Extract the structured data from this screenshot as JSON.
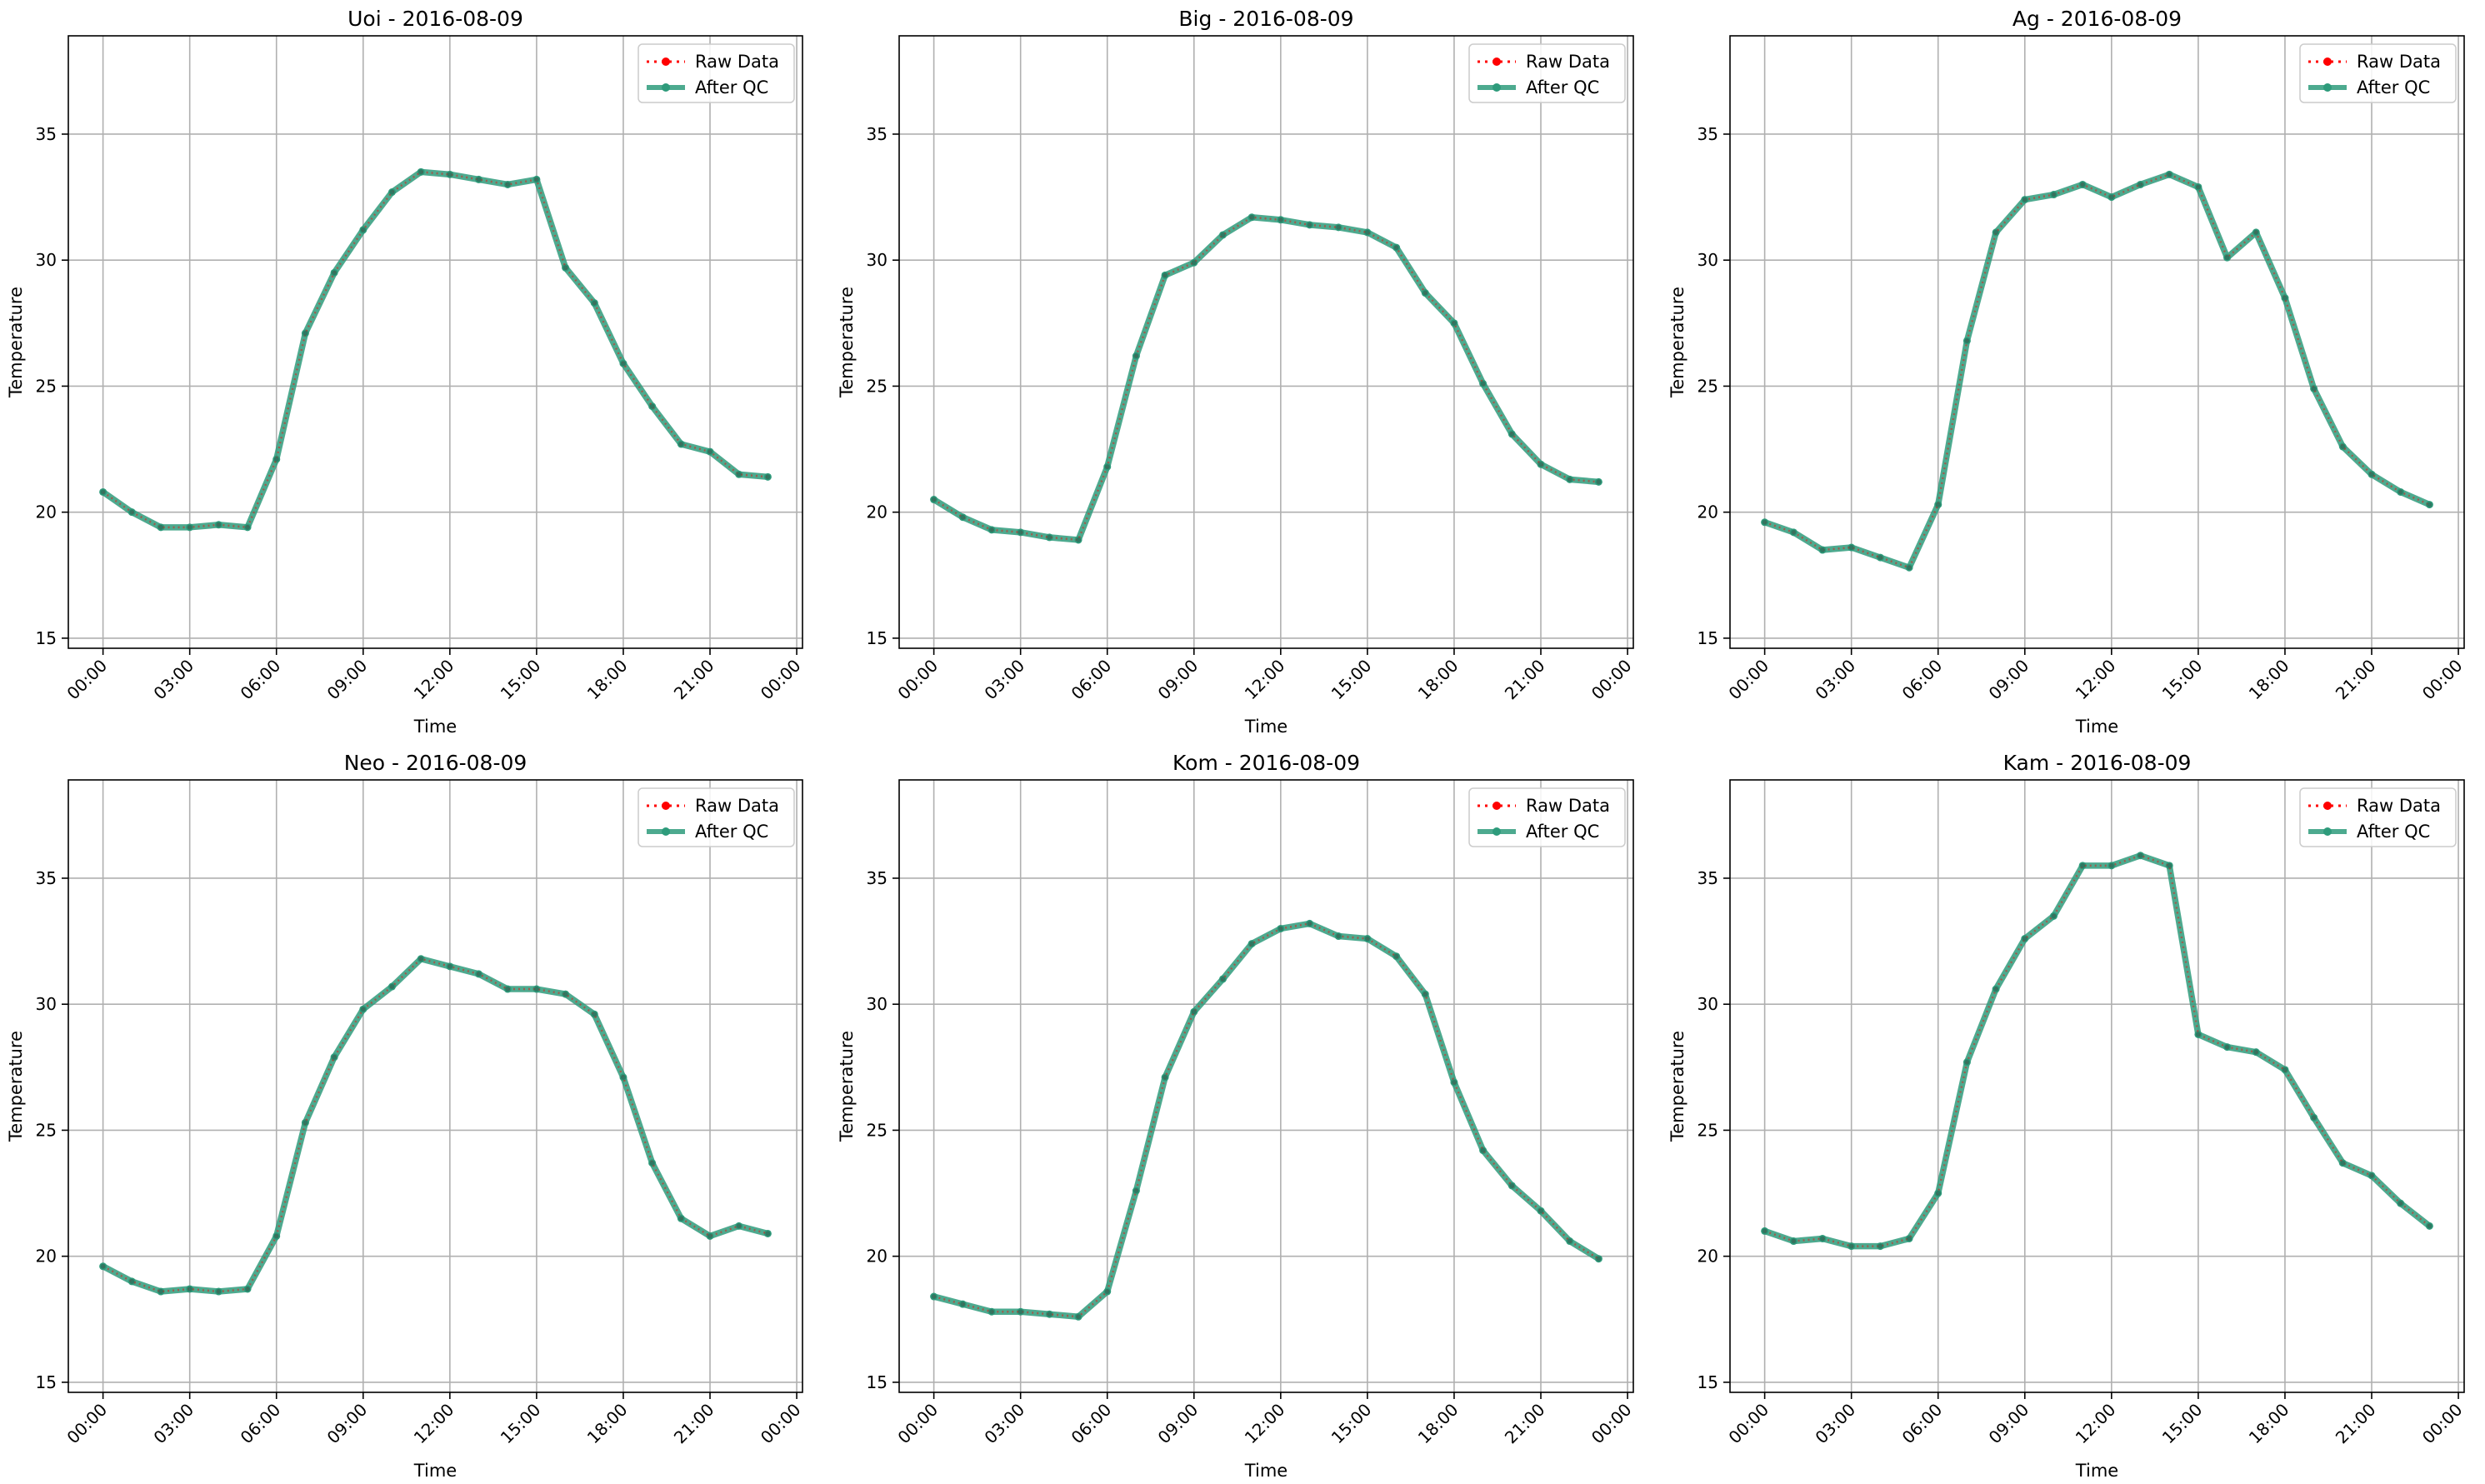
{
  "chart_data": [
    {
      "type": "line",
      "title": "Uoi - 2016-08-09",
      "xlabel": "Time",
      "ylabel": "Temperature",
      "xlim": [
        -1.2,
        24.2
      ],
      "ylim": [
        14.6,
        38.9
      ],
      "grid": true,
      "legend": "top-right",
      "x_ticks": [
        "00:00",
        "03:00",
        "06:00",
        "09:00",
        "12:00",
        "15:00",
        "18:00",
        "21:00",
        "00:00"
      ],
      "y_ticks": [
        15,
        20,
        25,
        30,
        35
      ],
      "x": [
        "00:00",
        "01:00",
        "02:00",
        "03:00",
        "04:00",
        "05:00",
        "06:00",
        "07:00",
        "08:00",
        "09:00",
        "10:00",
        "11:00",
        "12:00",
        "13:00",
        "14:00",
        "15:00",
        "16:00",
        "17:00",
        "18:00",
        "19:00",
        "20:00",
        "21:00",
        "22:00",
        "23:00"
      ],
      "series": [
        {
          "name": "Raw Data",
          "color": "#ff0000",
          "values": [
            20.8,
            20.0,
            19.4,
            19.4,
            19.5,
            19.4,
            22.1,
            27.1,
            29.5,
            31.2,
            32.7,
            33.5,
            33.4,
            33.2,
            33.0,
            33.2,
            29.7,
            28.3,
            25.9,
            24.2,
            22.7,
            22.4,
            21.5,
            21.4
          ]
        },
        {
          "name": "After QC",
          "color": "#2e9b7b",
          "values": [
            20.8,
            20.0,
            19.4,
            19.4,
            19.5,
            19.4,
            22.1,
            27.1,
            29.5,
            31.2,
            32.7,
            33.5,
            33.4,
            33.2,
            33.0,
            33.2,
            29.7,
            28.3,
            25.9,
            24.2,
            22.7,
            22.4,
            21.5,
            21.4
          ]
        }
      ]
    },
    {
      "type": "line",
      "title": "Big - 2016-08-09",
      "xlabel": "Time",
      "ylabel": "Temperature",
      "xlim": [
        -1.2,
        24.2
      ],
      "ylim": [
        14.6,
        38.9
      ],
      "grid": true,
      "legend": "top-right",
      "x_ticks": [
        "00:00",
        "03:00",
        "06:00",
        "09:00",
        "12:00",
        "15:00",
        "18:00",
        "21:00",
        "00:00"
      ],
      "y_ticks": [
        15,
        20,
        25,
        30,
        35
      ],
      "x": [
        "00:00",
        "01:00",
        "02:00",
        "03:00",
        "04:00",
        "05:00",
        "06:00",
        "07:00",
        "08:00",
        "09:00",
        "10:00",
        "11:00",
        "12:00",
        "13:00",
        "14:00",
        "15:00",
        "16:00",
        "17:00",
        "18:00",
        "19:00",
        "20:00",
        "21:00",
        "22:00",
        "23:00"
      ],
      "series": [
        {
          "name": "Raw Data",
          "color": "#ff0000",
          "values": [
            20.5,
            19.8,
            19.3,
            19.2,
            19.0,
            18.9,
            21.8,
            26.2,
            29.4,
            29.9,
            31.0,
            31.7,
            31.6,
            31.4,
            31.3,
            31.1,
            30.5,
            28.7,
            27.5,
            25.1,
            23.1,
            21.9,
            21.3,
            21.2
          ]
        },
        {
          "name": "After QC",
          "color": "#2e9b7b",
          "values": [
            20.5,
            19.8,
            19.3,
            19.2,
            19.0,
            18.9,
            21.8,
            26.2,
            29.4,
            29.9,
            31.0,
            31.7,
            31.6,
            31.4,
            31.3,
            31.1,
            30.5,
            28.7,
            27.5,
            25.1,
            23.1,
            21.9,
            21.3,
            21.2
          ]
        }
      ]
    },
    {
      "type": "line",
      "title": "Ag - 2016-08-09",
      "xlabel": "Time",
      "ylabel": "Temperature",
      "xlim": [
        -1.2,
        24.2
      ],
      "ylim": [
        14.6,
        38.9
      ],
      "grid": true,
      "legend": "top-right",
      "x_ticks": [
        "00:00",
        "03:00",
        "06:00",
        "09:00",
        "12:00",
        "15:00",
        "18:00",
        "21:00",
        "00:00"
      ],
      "y_ticks": [
        15,
        20,
        25,
        30,
        35
      ],
      "x": [
        "00:00",
        "01:00",
        "02:00",
        "03:00",
        "04:00",
        "05:00",
        "06:00",
        "07:00",
        "08:00",
        "09:00",
        "10:00",
        "11:00",
        "12:00",
        "13:00",
        "14:00",
        "15:00",
        "16:00",
        "17:00",
        "18:00",
        "19:00",
        "20:00",
        "21:00",
        "22:00",
        "23:00"
      ],
      "series": [
        {
          "name": "Raw Data",
          "color": "#ff0000",
          "values": [
            19.6,
            19.2,
            18.5,
            18.6,
            18.2,
            17.8,
            20.3,
            26.8,
            31.1,
            32.4,
            32.6,
            33.0,
            32.5,
            33.0,
            33.4,
            32.9,
            30.1,
            31.1,
            28.5,
            24.9,
            22.6,
            21.5,
            20.8,
            20.3
          ]
        },
        {
          "name": "After QC",
          "color": "#2e9b7b",
          "values": [
            19.6,
            19.2,
            18.5,
            18.6,
            18.2,
            17.8,
            20.3,
            26.8,
            31.1,
            32.4,
            32.6,
            33.0,
            32.5,
            33.0,
            33.4,
            32.9,
            30.1,
            31.1,
            28.5,
            24.9,
            22.6,
            21.5,
            20.8,
            20.3
          ]
        }
      ]
    },
    {
      "type": "line",
      "title": "Neo - 2016-08-09",
      "xlabel": "Time",
      "ylabel": "Temperature",
      "xlim": [
        -1.2,
        24.2
      ],
      "ylim": [
        14.6,
        38.9
      ],
      "grid": true,
      "legend": "top-right",
      "x_ticks": [
        "00:00",
        "03:00",
        "06:00",
        "09:00",
        "12:00",
        "15:00",
        "18:00",
        "21:00",
        "00:00"
      ],
      "y_ticks": [
        15,
        20,
        25,
        30,
        35
      ],
      "x": [
        "00:00",
        "01:00",
        "02:00",
        "03:00",
        "04:00",
        "05:00",
        "06:00",
        "07:00",
        "08:00",
        "09:00",
        "10:00",
        "11:00",
        "12:00",
        "13:00",
        "14:00",
        "15:00",
        "16:00",
        "17:00",
        "18:00",
        "19:00",
        "20:00",
        "21:00",
        "22:00",
        "23:00"
      ],
      "series": [
        {
          "name": "Raw Data",
          "color": "#ff0000",
          "values": [
            19.6,
            19.0,
            18.6,
            18.7,
            18.6,
            18.7,
            20.8,
            25.3,
            27.9,
            29.8,
            30.7,
            31.8,
            31.5,
            31.2,
            30.6,
            30.6,
            30.4,
            29.6,
            27.1,
            23.7,
            21.5,
            20.8,
            21.2,
            20.9
          ]
        },
        {
          "name": "After QC",
          "color": "#2e9b7b",
          "values": [
            19.6,
            19.0,
            18.6,
            18.7,
            18.6,
            18.7,
            20.8,
            25.3,
            27.9,
            29.8,
            30.7,
            31.8,
            31.5,
            31.2,
            30.6,
            30.6,
            30.4,
            29.6,
            27.1,
            23.7,
            21.5,
            20.8,
            21.2,
            20.9
          ]
        }
      ]
    },
    {
      "type": "line",
      "title": "Kom - 2016-08-09",
      "xlabel": "Time",
      "ylabel": "Temperature",
      "xlim": [
        -1.2,
        24.2
      ],
      "ylim": [
        14.6,
        38.9
      ],
      "grid": true,
      "legend": "top-right",
      "x_ticks": [
        "00:00",
        "03:00",
        "06:00",
        "09:00",
        "12:00",
        "15:00",
        "18:00",
        "21:00",
        "00:00"
      ],
      "y_ticks": [
        15,
        20,
        25,
        30,
        35
      ],
      "x": [
        "00:00",
        "01:00",
        "02:00",
        "03:00",
        "04:00",
        "05:00",
        "06:00",
        "07:00",
        "08:00",
        "09:00",
        "10:00",
        "11:00",
        "12:00",
        "13:00",
        "14:00",
        "15:00",
        "16:00",
        "17:00",
        "18:00",
        "19:00",
        "20:00",
        "21:00",
        "22:00",
        "23:00"
      ],
      "series": [
        {
          "name": "Raw Data",
          "color": "#ff0000",
          "values": [
            18.4,
            18.1,
            17.8,
            17.8,
            17.7,
            17.6,
            18.6,
            22.6,
            27.1,
            29.7,
            31.0,
            32.4,
            33.0,
            33.2,
            32.7,
            32.6,
            31.9,
            30.4,
            26.9,
            24.2,
            22.8,
            21.8,
            20.6,
            19.9
          ]
        },
        {
          "name": "After QC",
          "color": "#2e9b7b",
          "values": [
            18.4,
            18.1,
            17.8,
            17.8,
            17.7,
            17.6,
            18.6,
            22.6,
            27.1,
            29.7,
            31.0,
            32.4,
            33.0,
            33.2,
            32.7,
            32.6,
            31.9,
            30.4,
            26.9,
            24.2,
            22.8,
            21.8,
            20.6,
            19.9
          ]
        }
      ]
    },
    {
      "type": "line",
      "title": "Kam - 2016-08-09",
      "xlabel": "Time",
      "ylabel": "Temperature",
      "xlim": [
        -1.2,
        24.2
      ],
      "ylim": [
        14.6,
        38.9
      ],
      "grid": true,
      "legend": "top-right",
      "x_ticks": [
        "00:00",
        "03:00",
        "06:00",
        "09:00",
        "12:00",
        "15:00",
        "18:00",
        "21:00",
        "00:00"
      ],
      "y_ticks": [
        15,
        20,
        25,
        30,
        35
      ],
      "x": [
        "00:00",
        "01:00",
        "02:00",
        "03:00",
        "04:00",
        "05:00",
        "06:00",
        "07:00",
        "08:00",
        "09:00",
        "10:00",
        "11:00",
        "12:00",
        "13:00",
        "14:00",
        "15:00",
        "16:00",
        "17:00",
        "18:00",
        "19:00",
        "20:00",
        "21:00",
        "22:00",
        "23:00"
      ],
      "series": [
        {
          "name": "Raw Data",
          "color": "#ff0000",
          "values": [
            21.0,
            20.6,
            20.7,
            20.4,
            20.4,
            20.7,
            22.5,
            27.7,
            30.6,
            32.6,
            33.5,
            35.5,
            35.5,
            35.9,
            35.5,
            28.8,
            28.3,
            28.1,
            27.4,
            25.5,
            23.7,
            23.2,
            22.1,
            21.2
          ]
        },
        {
          "name": "After QC",
          "color": "#2e9b7b",
          "values": [
            21.0,
            20.6,
            20.7,
            20.4,
            20.4,
            20.7,
            22.5,
            27.7,
            30.6,
            32.6,
            33.5,
            35.5,
            35.5,
            35.9,
            35.5,
            28.8,
            28.3,
            28.1,
            27.4,
            25.5,
            23.7,
            23.2,
            22.1,
            21.2
          ]
        }
      ]
    }
  ]
}
